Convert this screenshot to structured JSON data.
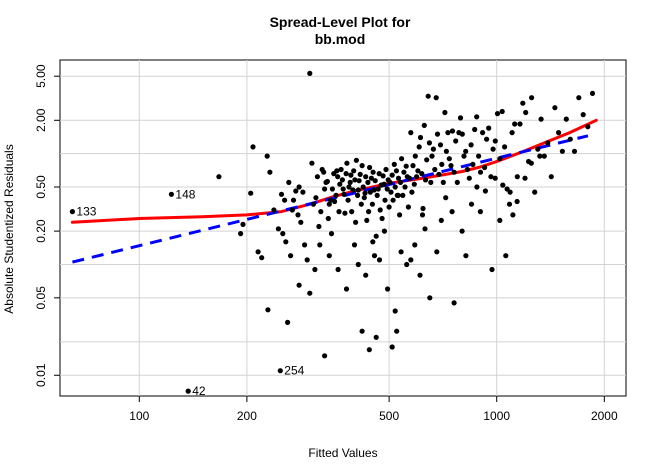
{
  "chart_data": {
    "type": "scatter",
    "title_line1": "Spread-Level Plot for",
    "title_line2": "bb.mod",
    "xlabel": "Fitted Values",
    "ylabel": "Absolute Studentized Residuals",
    "x_scale": "log",
    "y_scale": "log",
    "xlim": [
      60,
      2300
    ],
    "ylim": [
      0.0065,
      7.0
    ],
    "xticks": [
      100,
      200,
      500,
      1000,
      2000
    ],
    "yticks": [
      0.01,
      0.05,
      0.2,
      0.5,
      2.0,
      5.0
    ],
    "ytick_labels": [
      "0.01",
      "0.05",
      "0.20",
      "0.50",
      "2.00",
      "5.00"
    ],
    "grid": true,
    "labeled_points": [
      {
        "x": 65,
        "y": 0.3,
        "label": "133"
      },
      {
        "x": 123,
        "y": 0.43,
        "label": "148"
      },
      {
        "x": 248,
        "y": 0.011,
        "label": "254"
      },
      {
        "x": 137,
        "y": 0.0072,
        "label": "42"
      }
    ],
    "points": [
      [
        167,
        0.62
      ],
      [
        205,
        0.44
      ],
      [
        208,
        1.15
      ],
      [
        195,
        0.23
      ],
      [
        192,
        0.19
      ],
      [
        215,
        0.13
      ],
      [
        220,
        0.115
      ],
      [
        228,
        0.95
      ],
      [
        232,
        0.68
      ],
      [
        229,
        0.039
      ],
      [
        238,
        0.31
      ],
      [
        245,
        0.21
      ],
      [
        250,
        0.43
      ],
      [
        255,
        0.38
      ],
      [
        252,
        0.19
      ],
      [
        257,
        0.16
      ],
      [
        262,
        0.55
      ],
      [
        265,
        0.12
      ],
      [
        270,
        0.38
      ],
      [
        268,
        0.31
      ],
      [
        274,
        0.46
      ],
      [
        278,
        0.28
      ],
      [
        280,
        0.5
      ],
      [
        283,
        0.24
      ],
      [
        287,
        0.45
      ],
      [
        290,
        0.15
      ],
      [
        295,
        0.11
      ],
      [
        300,
        5.3
      ],
      [
        304,
        0.82
      ],
      [
        307,
        0.35
      ],
      [
        312,
        0.4
      ],
      [
        315,
        0.62
      ],
      [
        318,
        0.22
      ],
      [
        320,
        0.15
      ],
      [
        322,
        0.3
      ],
      [
        325,
        0.72
      ],
      [
        328,
        0.68
      ],
      [
        330,
        0.48
      ],
      [
        333,
        0.55
      ],
      [
        336,
        0.56
      ],
      [
        338,
        0.26
      ],
      [
        340,
        0.35
      ],
      [
        343,
        0.38
      ],
      [
        345,
        0.19
      ],
      [
        347,
        0.48
      ],
      [
        350,
        0.66
      ],
      [
        352,
        0.37
      ],
      [
        355,
        0.42
      ],
      [
        357,
        0.7
      ],
      [
        359,
        0.62
      ],
      [
        362,
        0.3
      ],
      [
        364,
        0.53
      ],
      [
        367,
        0.72
      ],
      [
        370,
        0.58
      ],
      [
        372,
        0.48
      ],
      [
        374,
        0.43
      ],
      [
        376,
        0.29
      ],
      [
        379,
        0.66
      ],
      [
        381,
        0.82
      ],
      [
        384,
        0.38
      ],
      [
        386,
        0.5
      ],
      [
        389,
        0.55
      ],
      [
        391,
        0.64
      ],
      [
        393,
        0.3
      ],
      [
        396,
        0.47
      ],
      [
        398,
        0.7
      ],
      [
        401,
        0.58
      ],
      [
        403,
        0.24
      ],
      [
        405,
        0.87
      ],
      [
        408,
        0.42
      ],
      [
        410,
        0.47
      ],
      [
        412,
        0.57
      ],
      [
        415,
        0.65
      ],
      [
        418,
        0.35
      ],
      [
        420,
        0.78
      ],
      [
        423,
        0.5
      ],
      [
        426,
        0.4
      ],
      [
        428,
        0.44
      ],
      [
        430,
        0.62
      ],
      [
        433,
        0.25
      ],
      [
        436,
        0.55
      ],
      [
        438,
        0.3
      ],
      [
        441,
        0.75
      ],
      [
        443,
        0.45
      ],
      [
        446,
        0.6
      ],
      [
        449,
        0.35
      ],
      [
        451,
        0.68
      ],
      [
        454,
        0.47
      ],
      [
        457,
        0.57
      ],
      [
        460,
        0.18
      ],
      [
        463,
        0.42
      ],
      [
        466,
        0.48
      ],
      [
        469,
        0.66
      ],
      [
        472,
        0.31
      ],
      [
        475,
        0.52
      ],
      [
        478,
        0.26
      ],
      [
        481,
        0.63
      ],
      [
        484,
        0.53
      ],
      [
        487,
        0.38
      ],
      [
        490,
        0.72
      ],
      [
        494,
        0.48
      ],
      [
        497,
        0.58
      ],
      [
        500,
        0.33
      ],
      [
        503,
        0.55
      ],
      [
        506,
        0.45
      ],
      [
        510,
        0.64
      ],
      [
        513,
        0.38
      ],
      [
        517,
        0.8
      ],
      [
        520,
        0.5
      ],
      [
        524,
        0.7
      ],
      [
        527,
        0.42
      ],
      [
        531,
        0.6
      ],
      [
        535,
        0.28
      ],
      [
        538,
        0.55
      ],
      [
        542,
        0.9
      ],
      [
        546,
        0.42
      ],
      [
        550,
        0.68
      ],
      [
        554,
        0.5
      ],
      [
        558,
        0.77
      ],
      [
        562,
        0.62
      ],
      [
        566,
        0.33
      ],
      [
        570,
        0.6
      ],
      [
        575,
        1.55
      ],
      [
        579,
        0.45
      ],
      [
        583,
        0.78
      ],
      [
        588,
        0.53
      ],
      [
        592,
        0.95
      ],
      [
        597,
        0.62
      ],
      [
        602,
        0.7
      ],
      [
        607,
        1.15
      ],
      [
        612,
        1.4
      ],
      [
        617,
        0.66
      ],
      [
        622,
        0.32
      ],
      [
        627,
        1.8
      ],
      [
        632,
        0.58
      ],
      [
        637,
        0.88
      ],
      [
        643,
        3.3
      ],
      [
        648,
        1.25
      ],
      [
        654,
        0.55
      ],
      [
        659,
        0.95
      ],
      [
        665,
        1.1
      ],
      [
        671,
        0.72
      ],
      [
        677,
        3.2
      ],
      [
        683,
        1.5
      ],
      [
        689,
        0.65
      ],
      [
        696,
        1.2
      ],
      [
        702,
        0.8
      ],
      [
        709,
        0.55
      ],
      [
        716,
        2.35
      ],
      [
        723,
        1.05
      ],
      [
        730,
        1.55
      ],
      [
        737,
        0.9
      ],
      [
        745,
        0.78
      ],
      [
        752,
        1.6
      ],
      [
        760,
        0.68
      ],
      [
        768,
        1.3
      ],
      [
        776,
        0.55
      ],
      [
        784,
        1.55
      ],
      [
        792,
        2.1
      ],
      [
        801,
        1.5
      ],
      [
        810,
        0.95
      ],
      [
        819,
        1.05
      ],
      [
        828,
        0.72
      ],
      [
        838,
        0.6
      ],
      [
        848,
        1.2
      ],
      [
        858,
        0.8
      ],
      [
        868,
        1.65
      ],
      [
        879,
        2.15
      ],
      [
        890,
        0.95
      ],
      [
        901,
        0.68
      ],
      [
        913,
        1.55
      ],
      [
        925,
        0.75
      ],
      [
        937,
        1.35
      ],
      [
        950,
        1.7
      ],
      [
        963,
        0.62
      ],
      [
        977,
        1.1
      ],
      [
        991,
        1.3
      ],
      [
        1005,
        2.3
      ],
      [
        1020,
        0.9
      ],
      [
        1036,
        2.4
      ],
      [
        1052,
        1.15
      ],
      [
        1069,
        0.48
      ],
      [
        1086,
        0.35
      ],
      [
        1104,
        1.55
      ],
      [
        1123,
        1.85
      ],
      [
        1142,
        0.62
      ],
      [
        1162,
        1.85
      ],
      [
        1183,
        2.85
      ],
      [
        1205,
        2.35
      ],
      [
        1228,
        0.85
      ],
      [
        1252,
        3.2
      ],
      [
        1277,
        0.45
      ],
      [
        1303,
        1.1
      ],
      [
        1331,
        2.05
      ],
      [
        1359,
        0.95
      ],
      [
        1389,
        1.25
      ],
      [
        1421,
        0.62
      ],
      [
        1455,
        2.6
      ],
      [
        1490,
        1.55
      ],
      [
        1527,
        1.05
      ],
      [
        1566,
        2.05
      ],
      [
        1607,
        1.35
      ],
      [
        1651,
        1.05
      ],
      [
        1697,
        3.2
      ],
      [
        1746,
        2.25
      ],
      [
        1798,
        1.75
      ],
      [
        1853,
        3.5
      ],
      [
        510,
        0.018
      ],
      [
        525,
        0.025
      ],
      [
        495,
        0.06
      ],
      [
        540,
        0.13
      ],
      [
        575,
        0.11
      ],
      [
        610,
        0.08
      ],
      [
        650,
        0.05
      ],
      [
        700,
        0.25
      ],
      [
        750,
        0.3
      ],
      [
        800,
        0.2
      ],
      [
        850,
        0.35
      ],
      [
        900,
        0.3
      ],
      [
        970,
        0.09
      ],
      [
        1020,
        0.25
      ],
      [
        1060,
        0.12
      ],
      [
        1110,
        0.28
      ],
      [
        340,
        0.12
      ],
      [
        360,
        0.09
      ],
      [
        380,
        0.06
      ],
      [
        410,
        0.1
      ],
      [
        430,
        0.08
      ],
      [
        450,
        0.16
      ],
      [
        470,
        0.11
      ],
      [
        300,
        0.055
      ],
      [
        420,
        0.025
      ],
      [
        460,
        0.022
      ],
      [
        440,
        0.017
      ],
      [
        330,
        0.015
      ],
      [
        280,
        0.065
      ],
      [
        260,
        0.03
      ],
      [
        310,
        0.09
      ],
      [
        520,
        0.038
      ],
      [
        560,
        0.1
      ],
      [
        590,
        0.15
      ],
      [
        630,
        0.21
      ],
      [
        680,
        0.13
      ],
      [
        720,
        0.4
      ],
      [
        760,
        0.045
      ],
      [
        820,
        0.12
      ],
      [
        880,
        0.5
      ],
      [
        930,
        0.46
      ],
      [
        990,
        0.6
      ],
      [
        1040,
        0.52
      ],
      [
        1090,
        0.45
      ],
      [
        1140,
        0.37
      ],
      [
        1200,
        0.6
      ],
      [
        1250,
        0.82
      ],
      [
        1320,
        0.95
      ],
      [
        400,
        0.15
      ],
      [
        455,
        0.12
      ],
      [
        485,
        0.2
      ],
      [
        530,
        0.42
      ],
      [
        620,
        0.28
      ]
    ],
    "series": [
      {
        "name": "",
        "color": "#ff0000",
        "style": "solid",
        "x": [
          65,
          100,
          150,
          200,
          250,
          300,
          350,
          400,
          450,
          500,
          600,
          700,
          800,
          900,
          1000,
          1200,
          1400,
          1600,
          1900
        ],
        "y": [
          0.24,
          0.26,
          0.27,
          0.28,
          0.3,
          0.35,
          0.41,
          0.46,
          0.5,
          0.54,
          0.59,
          0.64,
          0.69,
          0.76,
          0.85,
          1.06,
          1.3,
          1.55,
          2.0
        ]
      },
      {
        "name": "",
        "color": "#0000ff",
        "style": "dashed",
        "x": [
          65,
          1800
        ],
        "y": [
          0.105,
          1.45
        ]
      }
    ]
  }
}
